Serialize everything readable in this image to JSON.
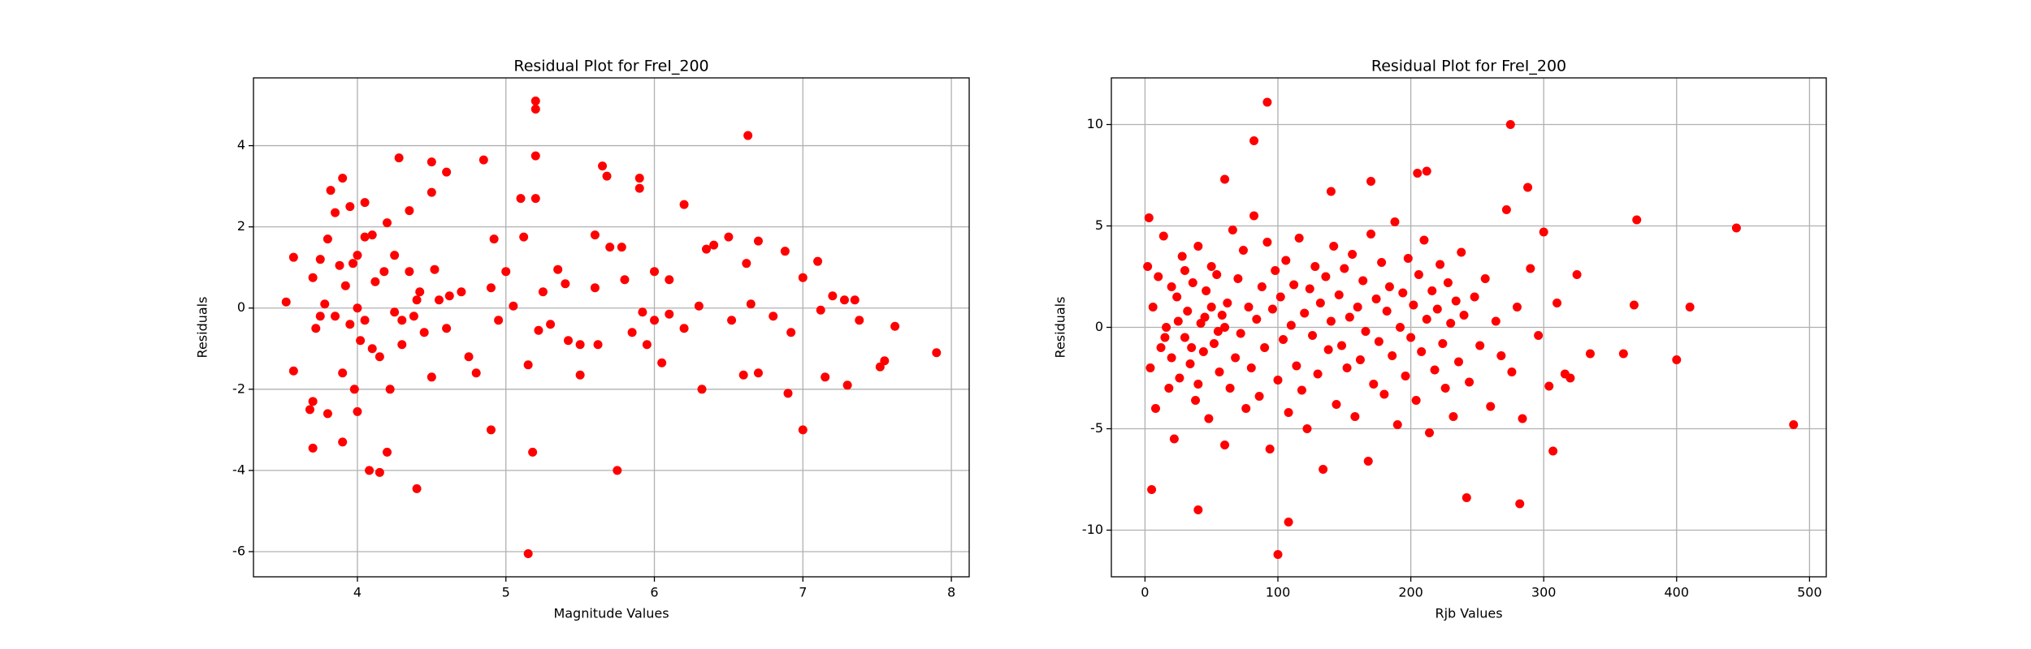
{
  "chart_data": [
    {
      "type": "scatter",
      "title": "Residual Plot for FreI_200",
      "xlabel": "Magnitude Values",
      "ylabel": "Residuals",
      "color": "#ff0000",
      "grid": true,
      "xlim": [
        3.3,
        8.12
      ],
      "ylim": [
        -6.62,
        5.67
      ],
      "xticks": [
        4,
        5,
        6,
        7,
        8
      ],
      "yticks": [
        -6,
        -4,
        -2,
        0,
        2,
        4
      ],
      "x": [
        3.52,
        3.57,
        3.57,
        3.68,
        3.7,
        3.7,
        3.7,
        3.72,
        3.75,
        3.78,
        3.8,
        3.8,
        3.82,
        3.85,
        3.88,
        3.9,
        3.9,
        3.9,
        3.92,
        3.95,
        3.97,
        3.98,
        4.0,
        4.0,
        4.02,
        4.05,
        4.05,
        4.08,
        4.1,
        4.1,
        4.12,
        4.15,
        4.18,
        4.2,
        4.2,
        4.22,
        4.25,
        4.28,
        4.3,
        4.35,
        4.38,
        4.4,
        4.42,
        4.5,
        4.5,
        4.5,
        4.52,
        4.6,
        4.62,
        4.7,
        4.75,
        4.8,
        4.85,
        4.9,
        4.92,
        4.95,
        5.0,
        5.05,
        5.1,
        5.12,
        5.15,
        5.15,
        5.18,
        5.2,
        5.2,
        5.2,
        5.2,
        5.22,
        5.3,
        5.35,
        5.42,
        5.5,
        5.6,
        5.62,
        5.65,
        5.68,
        5.7,
        5.75,
        5.78,
        5.8,
        5.85,
        5.9,
        5.9,
        5.92,
        5.95,
        6.0,
        6.05,
        6.1,
        6.2,
        6.2,
        6.3,
        6.32,
        6.35,
        6.4,
        6.5,
        6.52,
        6.6,
        6.62,
        6.63,
        6.65,
        6.7,
        6.7,
        6.8,
        6.88,
        6.9,
        6.92,
        7.0,
        7.0,
        7.1,
        7.12,
        7.15,
        7.2,
        7.28,
        7.3,
        7.35,
        7.38,
        7.52,
        7.55,
        7.62,
        7.9,
        4.3,
        4.4,
        4.0,
        3.85,
        4.6,
        5.4,
        5.6,
        6.1,
        6.0,
        4.9,
        4.15,
        4.25,
        3.95,
        4.45,
        5.25,
        5.5,
        4.05,
        3.75,
        4.35,
        4.55
      ],
      "values": [
        0.15,
        1.25,
        -1.55,
        -2.5,
        -2.3,
        -3.45,
        0.75,
        -0.5,
        1.2,
        0.1,
        1.7,
        -2.6,
        2.9,
        2.35,
        1.05,
        3.2,
        -3.3,
        -1.6,
        0.55,
        2.5,
        1.1,
        -2.0,
        -2.55,
        0.0,
        -0.8,
        2.6,
        1.75,
        -4.0,
        1.8,
        -1.0,
        0.65,
        -4.05,
        0.9,
        2.1,
        -3.55,
        -2.0,
        1.3,
        3.7,
        -0.9,
        2.4,
        -0.2,
        -4.45,
        0.4,
        2.85,
        3.6,
        -1.7,
        0.95,
        3.35,
        0.3,
        0.4,
        -1.2,
        -1.6,
        3.65,
        -3.0,
        1.7,
        -0.3,
        0.9,
        0.05,
        2.7,
        1.75,
        -6.05,
        -1.4,
        -3.55,
        5.1,
        4.9,
        3.75,
        2.7,
        -0.55,
        -0.4,
        0.95,
        -0.8,
        -1.65,
        1.8,
        -0.9,
        3.5,
        3.25,
        1.5,
        -4.0,
        1.5,
        0.7,
        -0.6,
        3.2,
        2.95,
        -0.1,
        -0.9,
        0.9,
        -1.35,
        -0.15,
        2.55,
        -0.5,
        0.05,
        -2.0,
        1.45,
        1.55,
        1.75,
        -0.3,
        -1.65,
        1.1,
        4.25,
        0.1,
        1.65,
        -1.6,
        -0.2,
        1.4,
        -2.1,
        -0.6,
        0.75,
        -3.0,
        1.15,
        -0.05,
        -1.7,
        0.3,
        0.2,
        -1.9,
        0.2,
        -0.3,
        -1.45,
        -1.3,
        -0.45,
        -1.1,
        -0.3,
        0.2,
        1.3,
        -0.2,
        -0.5,
        0.6,
        0.5,
        0.7,
        -0.3,
        0.5,
        -1.2,
        -0.1,
        -0.4,
        -0.6,
        0.4,
        -0.9,
        -0.3,
        -0.2,
        0.9,
        0.2
      ]
    },
    {
      "type": "scatter",
      "title": "Residual Plot for FreI_200",
      "xlabel": "Rjb Values",
      "ylabel": "Residuals",
      "color": "#ff0000",
      "grid": true,
      "xlim": [
        -25.3,
        512.6
      ],
      "ylim": [
        -12.3,
        12.3
      ],
      "xticks": [
        0,
        100,
        200,
        300,
        400,
        500
      ],
      "yticks": [
        -10,
        -5,
        0,
        5,
        10
      ],
      "x": [
        3,
        5,
        40,
        60,
        82,
        92,
        100,
        108,
        140,
        170,
        205,
        212,
        242,
        275,
        282,
        288,
        307,
        325,
        335,
        360,
        368,
        370,
        400,
        410,
        445,
        488,
        2,
        4,
        6,
        8,
        10,
        12,
        14,
        16,
        18,
        20,
        22,
        24,
        26,
        28,
        30,
        32,
        34,
        36,
        38,
        40,
        42,
        44,
        46,
        48,
        50,
        52,
        54,
        56,
        58,
        60,
        62,
        64,
        66,
        68,
        70,
        72,
        74,
        76,
        78,
        80,
        82,
        84,
        86,
        88,
        90,
        92,
        94,
        96,
        98,
        100,
        102,
        104,
        106,
        108,
        110,
        112,
        114,
        116,
        118,
        120,
        122,
        124,
        126,
        128,
        130,
        132,
        134,
        136,
        138,
        140,
        142,
        144,
        146,
        148,
        150,
        152,
        154,
        156,
        158,
        160,
        162,
        164,
        166,
        168,
        170,
        172,
        174,
        176,
        178,
        180,
        182,
        184,
        186,
        188,
        190,
        192,
        194,
        196,
        198,
        200,
        202,
        204,
        206,
        208,
        210,
        212,
        214,
        216,
        218,
        220,
        222,
        224,
        226,
        228,
        230,
        232,
        234,
        236,
        238,
        240,
        244,
        248,
        252,
        256,
        260,
        264,
        268,
        272,
        276,
        280,
        284,
        290,
        296,
        300,
        304,
        310,
        316,
        320,
        15,
        25,
        35,
        45,
        55,
        30,
        40,
        50,
        20,
        60
      ],
      "values": [
        5.4,
        -8,
        -9,
        7.3,
        9.2,
        11.1,
        -11.2,
        -9.6,
        6.7,
        7.2,
        7.6,
        7.7,
        -8.4,
        10,
        -8.7,
        6.9,
        -6.1,
        2.6,
        -1.3,
        -1.3,
        1.1,
        5.3,
        -1.6,
        1.0,
        4.9,
        -4.8,
        3,
        -2,
        1,
        -4,
        2.5,
        -1,
        4.5,
        0,
        -3,
        2,
        -5.5,
        1.5,
        -2.5,
        3.5,
        -0.5,
        0.8,
        -1.8,
        2.2,
        -3.6,
        4,
        0.2,
        -1.2,
        1.8,
        -4.5,
        3,
        -0.8,
        2.6,
        -2.2,
        0.6,
        -5.8,
        1.2,
        -3,
        4.8,
        -1.5,
        2.4,
        -0.3,
        3.8,
        -4,
        1,
        -2,
        5.5,
        0.4,
        -3.4,
        2,
        -1,
        4.2,
        -6,
        0.9,
        2.8,
        -2.6,
        1.5,
        -0.6,
        3.3,
        -4.2,
        0.1,
        2.1,
        -1.9,
        4.4,
        -3.1,
        0.7,
        -5,
        1.9,
        -0.4,
        3,
        -2.3,
        1.2,
        -7,
        2.5,
        -1.1,
        0.3,
        4,
        -3.8,
        1.6,
        -0.9,
        2.9,
        -2,
        0.5,
        3.6,
        -4.4,
        1,
        -1.6,
        2.3,
        -0.2,
        -6.6,
        4.6,
        -2.8,
        1.4,
        -0.7,
        3.2,
        -3.3,
        0.8,
        2,
        -1.4,
        5.2,
        -4.8,
        0,
        1.7,
        -2.4,
        3.4,
        -0.5,
        1.1,
        -3.6,
        2.6,
        -1.2,
        4.3,
        0.4,
        -5.2,
        1.8,
        -2.1,
        0.9,
        3.1,
        -0.8,
        -3,
        2.2,
        0.2,
        -4.4,
        1.3,
        -1.7,
        3.7,
        0.6,
        -2.7,
        1.5,
        -0.9,
        2.4,
        -3.9,
        0.3,
        -1.4,
        5.8,
        -2.2,
        1,
        -4.5,
        2.9,
        -0.4,
        4.7,
        -2.9,
        1.2,
        -2.3,
        -2.5,
        -0.5,
        0.3,
        -1,
        0.5,
        -0.2,
        2.8,
        -2.8,
        1,
        -1.5,
        0
      ]
    }
  ]
}
